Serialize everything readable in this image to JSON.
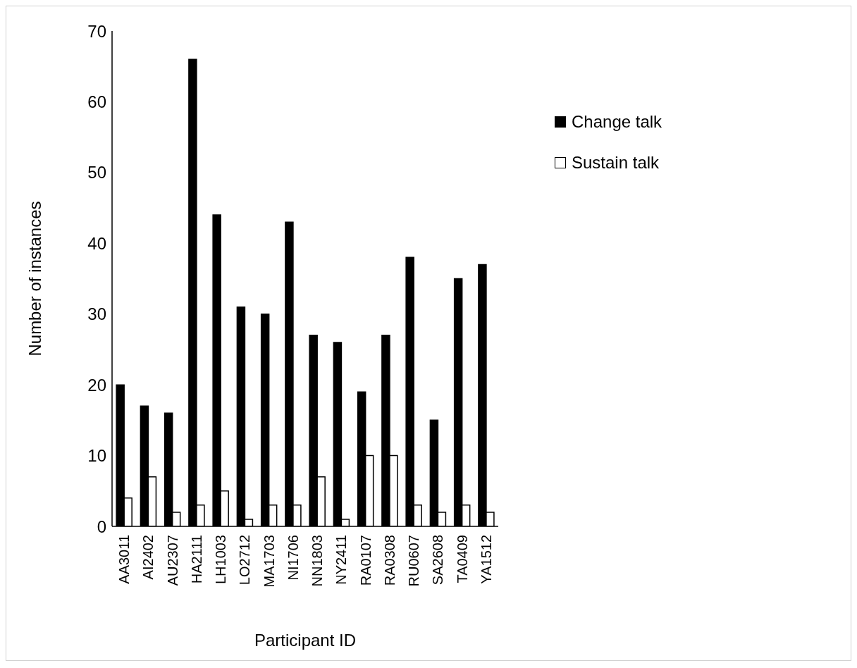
{
  "chart_data": {
    "type": "bar",
    "xlabel": "Participant ID",
    "ylabel": "Number of instances",
    "categories": [
      "AA3011",
      "AI2402",
      "AU2307",
      "HA2111",
      "LH1003",
      "LO2712",
      "MA1703",
      "NI1706",
      "NN1803",
      "NY2411",
      "RA0107",
      "RA0308",
      "RU0607",
      "SA2608",
      "TA0409",
      "YA1512"
    ],
    "series": [
      {
        "name": "Change talk",
        "color": "#000000",
        "values": [
          20,
          17,
          16,
          66,
          44,
          31,
          30,
          43,
          27,
          26,
          19,
          27,
          38,
          15,
          35,
          37
        ]
      },
      {
        "name": "Sustain talk",
        "color": "#ffffff",
        "values": [
          4,
          7,
          2,
          3,
          5,
          1,
          3,
          3,
          7,
          1,
          10,
          10,
          3,
          2,
          3,
          2
        ]
      }
    ],
    "ylim": [
      0,
      70
    ],
    "yticks": [
      0,
      10,
      20,
      30,
      40,
      50,
      60,
      70
    ],
    "grid": false,
    "legend": "top right"
  }
}
